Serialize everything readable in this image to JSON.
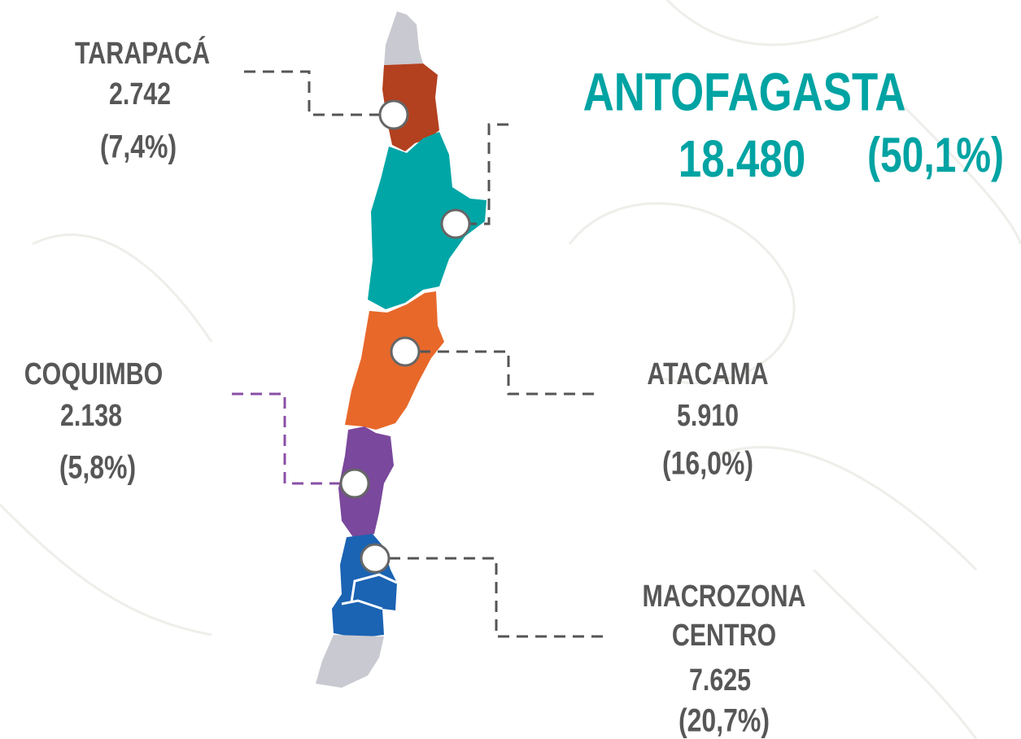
{
  "regions": [
    {
      "name": "TARAPACÁ",
      "value": "2.742",
      "share": "(7,4%)"
    },
    {
      "name": "ANTOFAGASTA",
      "value": "18.480",
      "share": "(50,1%)"
    },
    {
      "name": "ATACAMA",
      "value": "5.910",
      "share": "(16,0%)"
    },
    {
      "name": "COQUIMBO",
      "value": "2.138",
      "share": "(5,8%)"
    },
    {
      "name": "MACROZONA CENTRO",
      "value": "7.625",
      "share": "(20,7%)"
    }
  ]
}
